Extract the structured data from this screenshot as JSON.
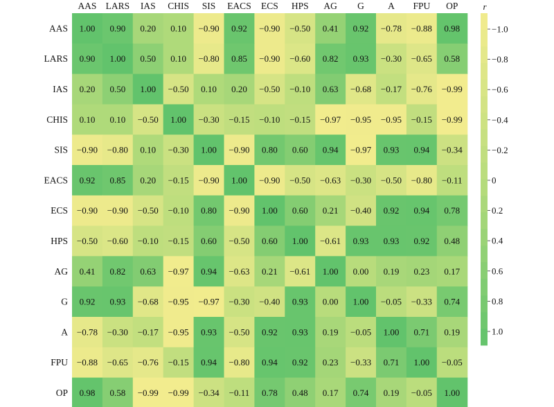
{
  "chart_data": {
    "type": "heatmap",
    "title": "",
    "xlabel": "",
    "ylabel": "",
    "columns": [
      "AAS",
      "LARS",
      "IAS",
      "CHIS",
      "SIS",
      "EACS",
      "ECS",
      "HPS",
      "AG",
      "G",
      "A",
      "FPU",
      "OP"
    ],
    "rows": [
      "AAS",
      "LARS",
      "IAS",
      "CHIS",
      "SIS",
      "EACS",
      "ECS",
      "HPS",
      "AG",
      "G",
      "A",
      "FPU",
      "OP"
    ],
    "values": [
      [
        1.0,
        0.9,
        0.2,
        0.1,
        -0.9,
        0.92,
        -0.9,
        -0.5,
        0.41,
        0.92,
        -0.78,
        -0.88,
        0.98
      ],
      [
        0.9,
        1.0,
        0.5,
        0.1,
        -0.8,
        0.85,
        -0.9,
        -0.6,
        0.82,
        0.93,
        -0.3,
        -0.65,
        0.58
      ],
      [
        0.2,
        0.5,
        1.0,
        -0.5,
        0.1,
        0.2,
        -0.5,
        -0.1,
        0.63,
        -0.68,
        -0.17,
        -0.76,
        -0.99
      ],
      [
        0.1,
        0.1,
        -0.5,
        1.0,
        -0.3,
        -0.15,
        -0.1,
        -0.15,
        -0.97,
        -0.95,
        -0.95,
        -0.15,
        -0.99
      ],
      [
        -0.9,
        -0.8,
        0.1,
        -0.3,
        1.0,
        -0.9,
        0.8,
        0.6,
        0.94,
        -0.97,
        0.93,
        0.94,
        -0.34
      ],
      [
        0.92,
        0.85,
        0.2,
        -0.15,
        -0.9,
        1.0,
        -0.9,
        -0.5,
        -0.63,
        -0.3,
        -0.5,
        -0.8,
        -0.11
      ],
      [
        -0.9,
        -0.9,
        -0.5,
        -0.1,
        0.8,
        -0.9,
        1.0,
        0.6,
        0.21,
        -0.4,
        0.92,
        0.94,
        0.78
      ],
      [
        -0.5,
        -0.6,
        -0.1,
        -0.15,
        0.6,
        -0.5,
        0.6,
        1.0,
        -0.61,
        0.93,
        0.93,
        0.92,
        0.48
      ],
      [
        0.41,
        0.82,
        0.63,
        -0.97,
        0.94,
        -0.63,
        0.21,
        -0.61,
        1.0,
        0.0,
        0.19,
        0.23,
        0.17
      ],
      [
        0.92,
        0.93,
        -0.68,
        -0.95,
        -0.97,
        -0.3,
        -0.4,
        0.93,
        0.0,
        1.0,
        -0.05,
        -0.33,
        0.74
      ],
      [
        -0.78,
        -0.3,
        -0.17,
        -0.95,
        0.93,
        -0.5,
        0.92,
        0.93,
        0.19,
        -0.05,
        1.0,
        0.71,
        0.19
      ],
      [
        -0.88,
        -0.65,
        -0.76,
        -0.15,
        0.94,
        -0.8,
        0.94,
        0.92,
        0.23,
        -0.33,
        0.71,
        1.0,
        -0.05
      ],
      [
        0.98,
        0.58,
        -0.99,
        -0.99,
        -0.34,
        -0.11,
        0.78,
        0.48,
        0.17,
        0.74,
        0.19,
        -0.05,
        1.0
      ]
    ],
    "value_range": [
      -1.0,
      1.0
    ],
    "colorbar": {
      "label": "r",
      "ticks": [
        -1.0,
        -0.8,
        -0.6,
        -0.4,
        -0.2,
        0,
        0.2,
        0.4,
        0.6,
        0.8,
        1.0
      ],
      "tick_labels": [
        "−1.0",
        "−0.8",
        "−0.6",
        "−0.4",
        "−0.2",
        "0",
        "0.2",
        "0.4",
        "0.6",
        "0.8",
        "1.0"
      ],
      "position": "right"
    },
    "colors": {
      "negative": "#f3ec8e",
      "mid": "#b8dc7c",
      "positive": "#62c36c"
    },
    "cell_label_decimals": 2,
    "grid": false
  }
}
